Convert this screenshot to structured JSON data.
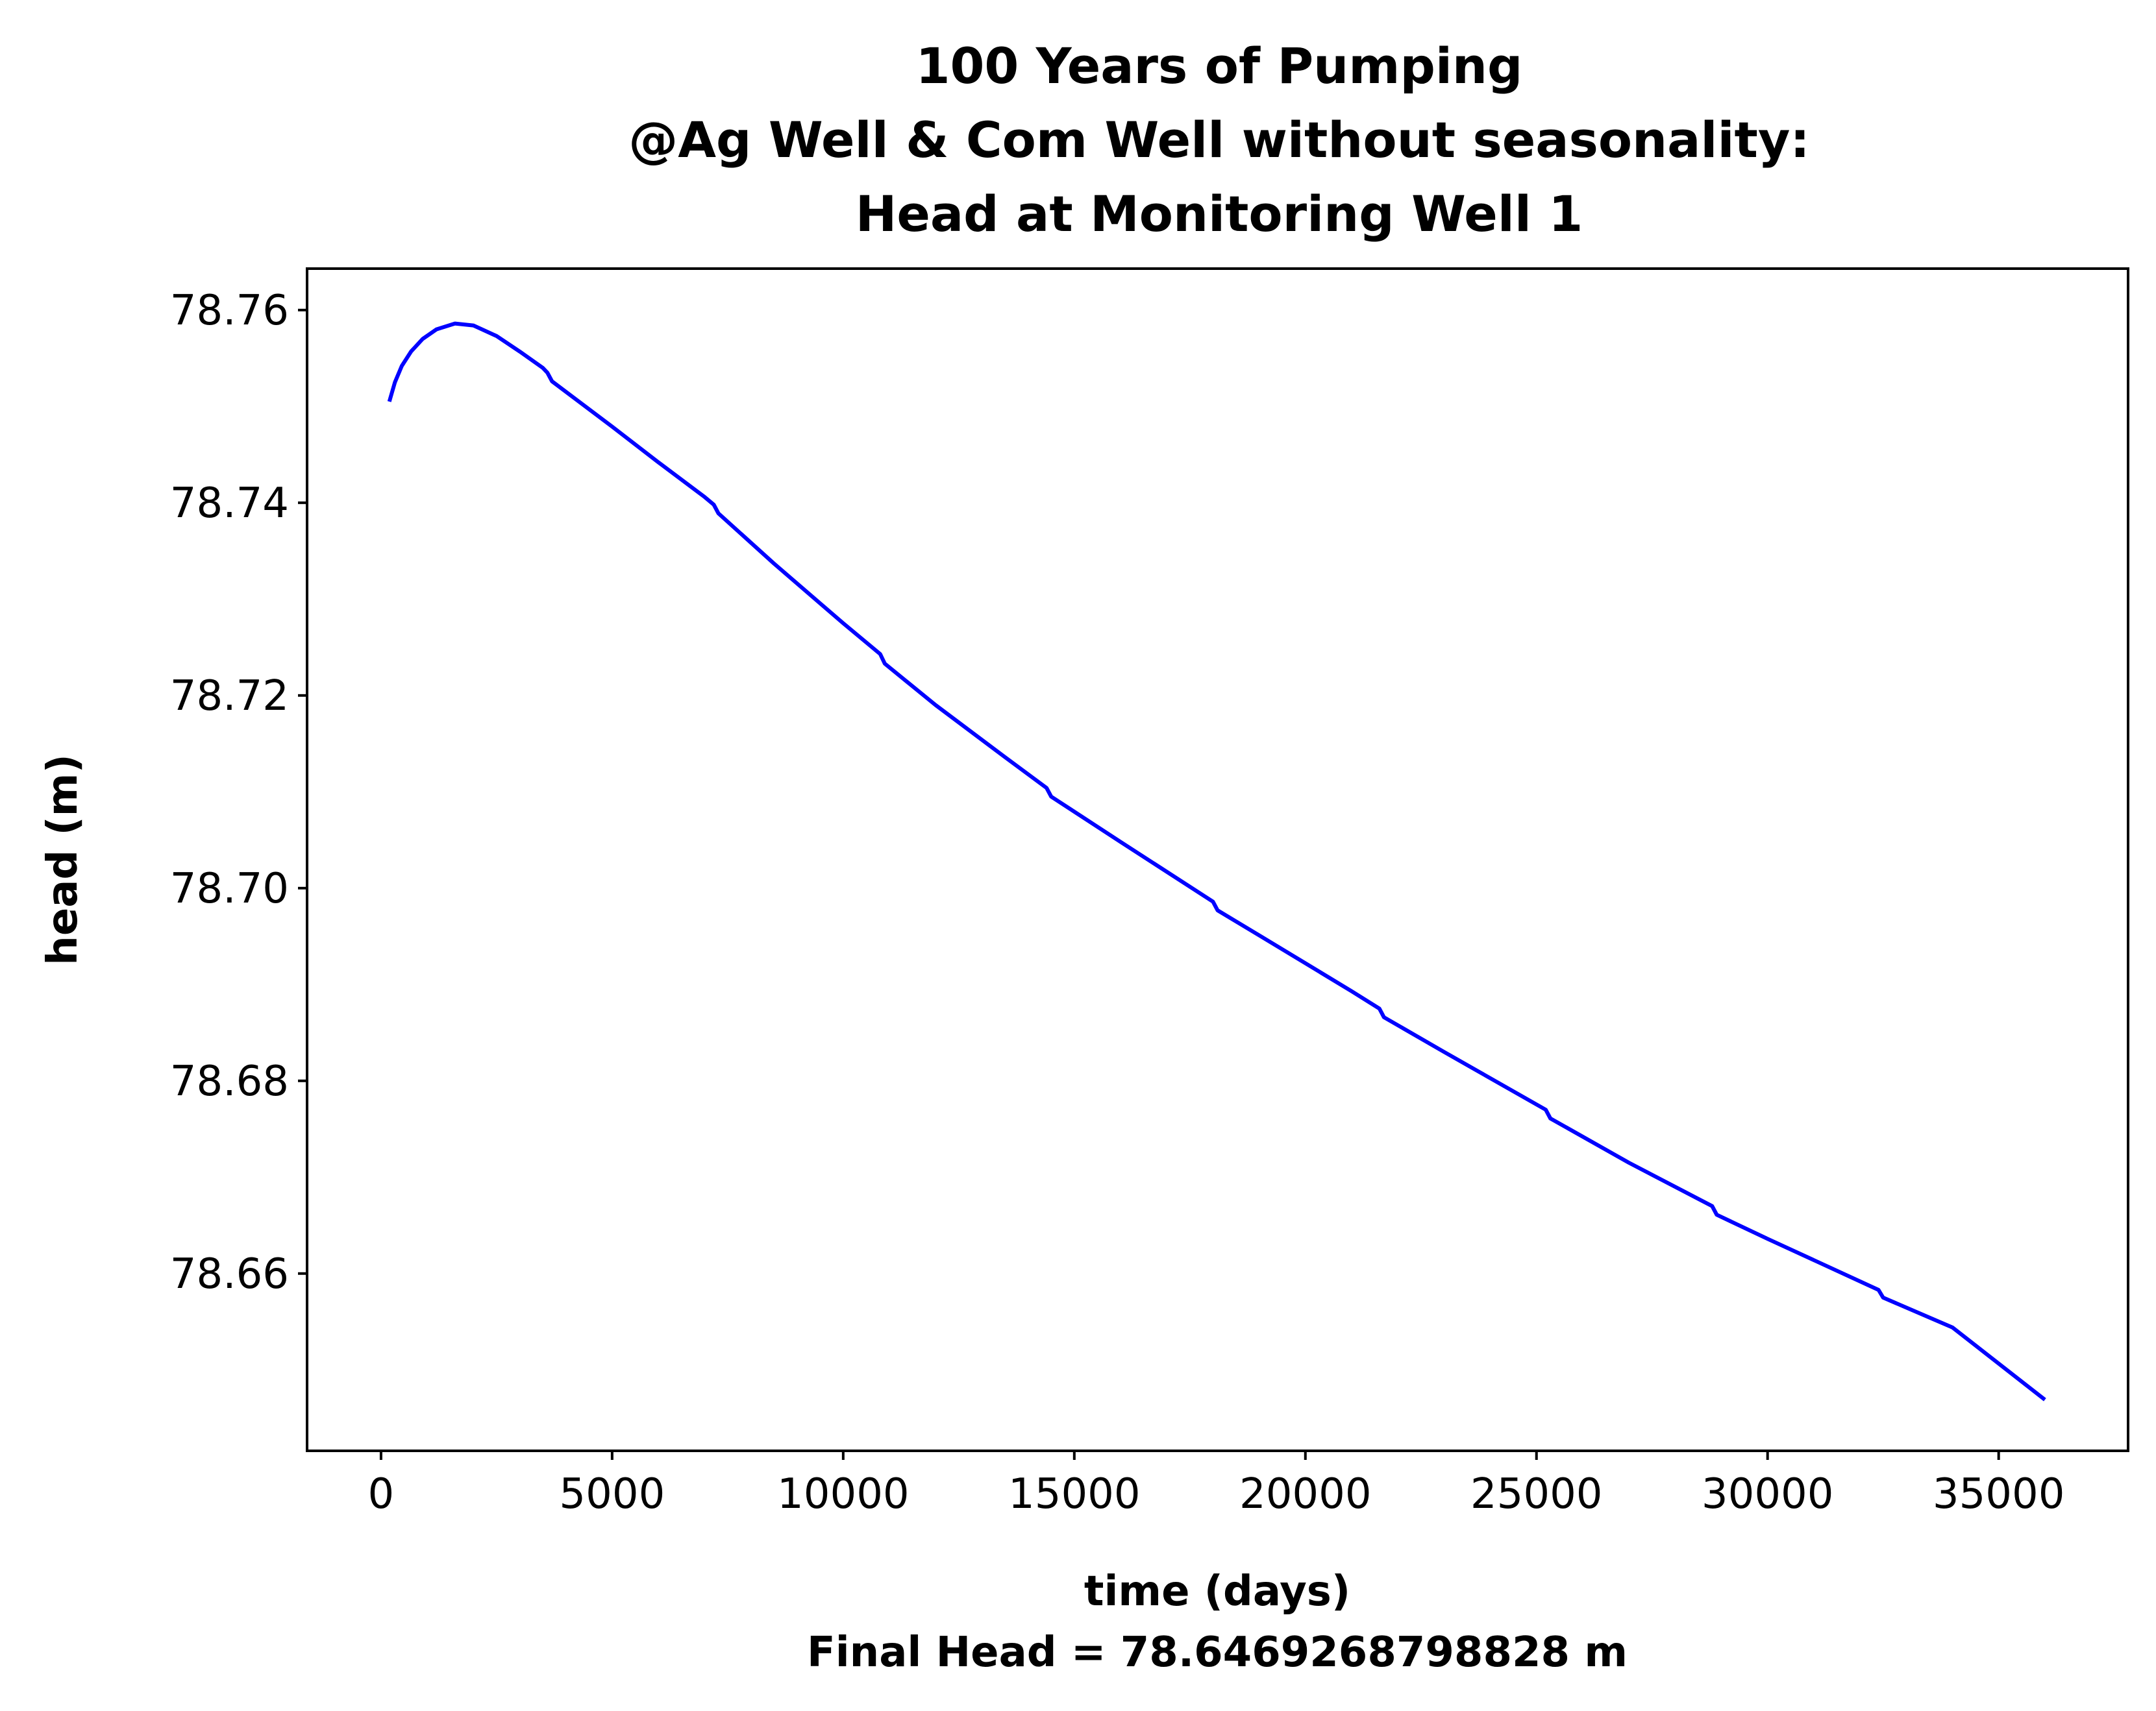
{
  "chart_data": {
    "type": "line",
    "title": [
      "100 Years of Pumping",
      "@Ag Well & Com Well without seasonality:",
      "Head at Monitoring Well 1"
    ],
    "xlabel": "time (days)",
    "xlabel_note": "Final Head = 78.6469268798828 m",
    "ylabel": "head (m)",
    "xlim": [
      -1600,
      37800
    ],
    "ylim": [
      78.6416,
      78.7643
    ],
    "xticks": [
      0,
      5000,
      10000,
      15000,
      20000,
      25000,
      30000,
      35000
    ],
    "xtick_labels": [
      "0",
      "5000",
      "10000",
      "15000",
      "20000",
      "25000",
      "30000",
      "35000"
    ],
    "yticks": [
      78.66,
      78.68,
      78.7,
      78.72,
      78.74,
      78.76
    ],
    "ytick_labels": [
      "78.66",
      "78.68",
      "78.70",
      "78.72",
      "78.74",
      "78.76"
    ],
    "grid": false,
    "legend": "none",
    "series": [
      {
        "color": "#0000ff",
        "x": [
          180,
          300,
          450,
          650,
          900,
          1200,
          1600,
          2000,
          2500,
          3000,
          3500,
          3600,
          3700,
          5000,
          6000,
          7000,
          7200,
          7300,
          8500,
          10000,
          10800,
          10900,
          12000,
          13500,
          14400,
          14500,
          16000,
          18000,
          18100,
          19000,
          20000,
          21000,
          21600,
          21700,
          23000,
          25200,
          25300,
          27000,
          28800,
          28900,
          30000,
          32400,
          32500,
          34000,
          36000
        ],
        "y": [
          78.7505,
          78.7525,
          78.7542,
          78.7557,
          78.757,
          78.758,
          78.7586,
          78.7584,
          78.7573,
          78.7557,
          78.754,
          78.7535,
          78.7526,
          78.7479,
          78.7442,
          78.7406,
          78.7398,
          78.7389,
          78.7337,
          78.7275,
          78.7243,
          78.7233,
          78.719,
          78.7136,
          78.7104,
          78.7095,
          78.7048,
          78.6986,
          78.6977,
          78.6951,
          78.6922,
          78.6893,
          78.6875,
          78.6866,
          78.683,
          78.677,
          78.6761,
          78.6715,
          78.667,
          78.6661,
          78.6636,
          78.6583,
          78.6575,
          78.6544,
          78.6469
        ]
      }
    ]
  }
}
